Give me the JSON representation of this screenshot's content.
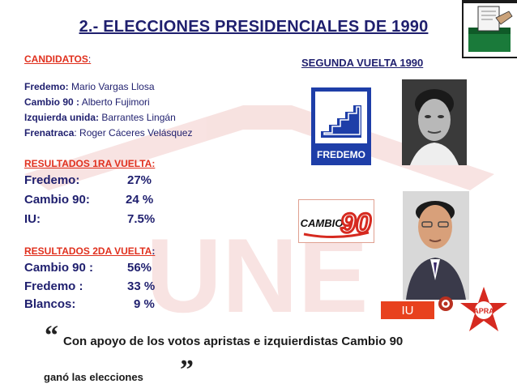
{
  "title": "2.- ELECCIONES PRESIDENCIALES DE 1990",
  "candidatos": {
    "heading": "CANDIDATOS",
    "heading_colon": ":",
    "items": [
      {
        "party": "Fredemo:",
        "name": " Mario Vargas Llosa"
      },
      {
        "party": "Cambio 90 :",
        "name": " Alberto Fujimori"
      },
      {
        "party": "Izquierda unida:",
        "name": " Barrantes Lingán"
      },
      {
        "party": "Frenatraca",
        "name": ": Roger Cáceres Velásquez"
      }
    ]
  },
  "primera_vuelta": {
    "heading": "RESULTADOS 1RA VUELTA:",
    "rows": [
      {
        "label": "Fredemo:",
        "value": "27%"
      },
      {
        "label": "Cambio 90:",
        "value": "24 %"
      },
      {
        "label": "IU:",
        "value": "7.5%"
      }
    ]
  },
  "segunda_vuelta": {
    "heading": "RESULTADOS 2DA VUELTA",
    "heading_colon": ":",
    "rows": [
      {
        "label": "Cambio 90 :",
        "value": "56%"
      },
      {
        "label": "Fredemo :",
        "value": "33 %"
      },
      {
        "label": "Blancos:",
        "value": "9 %"
      }
    ]
  },
  "segunda_vuelta_title": "SEGUNDA VUELTA 1990",
  "logos": {
    "fredemo": "FREDEMO",
    "cambio90": "CAMBIO",
    "cambio90_num": "90",
    "iu": "IU",
    "apra": "APRA"
  },
  "watermark": "UNE",
  "quote": {
    "open": "“",
    "line1": "Con apoyo de los votos apristas e izquierdistas Cambio 90",
    "line2": "ganó las elecciones",
    "close": "”"
  },
  "colors": {
    "navy": "#1f1f6e",
    "red": "#e0301e",
    "fredemo_blue": "#1e3ea8",
    "iu_bg": "#e8411e",
    "apra_red": "#d62a20"
  }
}
